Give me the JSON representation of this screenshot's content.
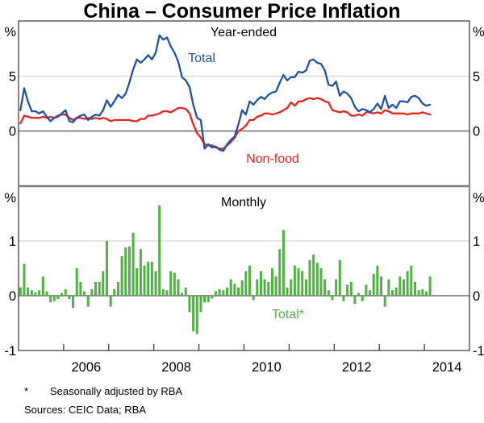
{
  "title": "China – Consumer Price Inflation",
  "footnote": {
    "marker": "*",
    "text": "Seasonally adjusted by RBA"
  },
  "sources": "Sources:  CEIC Data; RBA",
  "axis": {
    "unit_label": "%",
    "x_year_tick_years": [
      2006,
      2007,
      2008,
      2009,
      2010,
      2011,
      2012,
      2013,
      2014
    ],
    "x_year_labels": [
      "2006",
      "2008",
      "2010",
      "2012",
      "2014"
    ],
    "x_label_years": [
      2006,
      2008,
      2010,
      2012,
      2014
    ]
  },
  "chart_data": [
    {
      "type": "line",
      "panel": "top",
      "panel_title": "Year-ended",
      "ylabel": "%",
      "ylim": [
        -5,
        10
      ],
      "yticks": [
        0,
        5
      ],
      "grid": "horizontal",
      "x_start": "2005-01",
      "x_end": "2014-02",
      "frequency": "monthly",
      "xlim_years": [
        2005,
        2015
      ],
      "series": [
        {
          "name": "Total",
          "color": "#2253a3",
          "values": [
            1.9,
            3.9,
            2.7,
            1.8,
            1.8,
            1.6,
            1.8,
            1.3,
            0.9,
            1.2,
            1.3,
            1.6,
            1.9,
            0.9,
            0.8,
            1.2,
            1.4,
            1.5,
            1.0,
            1.3,
            1.5,
            1.4,
            1.9,
            2.8,
            2.2,
            2.7,
            3.3,
            3.0,
            3.4,
            4.4,
            5.6,
            6.5,
            6.2,
            6.5,
            6.9,
            6.5,
            7.1,
            8.7,
            8.3,
            8.5,
            7.7,
            7.1,
            6.3,
            4.9,
            4.6,
            4.0,
            2.4,
            1.2,
            1.0,
            -1.6,
            -1.2,
            -1.5,
            -1.4,
            -1.7,
            -1.8,
            -1.2,
            -0.8,
            -0.5,
            0.6,
            1.9,
            1.5,
            2.7,
            2.4,
            2.8,
            3.1,
            2.9,
            3.3,
            3.5,
            3.6,
            4.4,
            5.1,
            4.6,
            4.9,
            4.9,
            5.4,
            5.3,
            5.5,
            6.4,
            6.5,
            6.2,
            6.1,
            5.5,
            4.2,
            4.1,
            4.5,
            3.2,
            3.6,
            3.4,
            3.0,
            2.2,
            1.8,
            2.0,
            1.9,
            1.7,
            2.0,
            2.5,
            2.0,
            3.2,
            2.1,
            2.4,
            2.1,
            2.7,
            2.7,
            2.6,
            3.1,
            3.2,
            3.0,
            2.5,
            2.3,
            2.4
          ]
        },
        {
          "name": "Non-food",
          "color": "#e62520",
          "values": [
            0.7,
            1.4,
            1.3,
            1.2,
            1.2,
            1.2,
            1.3,
            1.2,
            1.3,
            1.2,
            1.4,
            1.5,
            1.5,
            1.2,
            1.0,
            1.2,
            1.2,
            1.1,
            1.2,
            1.1,
            1.2,
            1.1,
            1.2,
            1.1,
            0.9,
            1.0,
            1.0,
            1.0,
            1.0,
            1.0,
            0.9,
            0.9,
            1.1,
            1.1,
            1.4,
            1.4,
            1.5,
            1.6,
            1.8,
            1.8,
            1.7,
            1.9,
            2.1,
            2.1,
            2.0,
            1.6,
            0.6,
            -0.2,
            -0.6,
            -1.2,
            -1.3,
            -1.3,
            -1.5,
            -1.6,
            -1.6,
            -1.3,
            -1.0,
            -0.6,
            0.0,
            0.2,
            0.5,
            1.0,
            1.0,
            1.3,
            1.4,
            1.6,
            1.6,
            1.5,
            1.6,
            1.7,
            1.9,
            2.1,
            2.6,
            2.3,
            2.7,
            2.7,
            2.9,
            3.0,
            2.9,
            3.0,
            2.9,
            2.7,
            2.6,
            1.9,
            1.8,
            1.7,
            1.8,
            1.7,
            1.4,
            1.4,
            1.5,
            1.4,
            1.7,
            1.7,
            1.6,
            1.7,
            1.6,
            1.9,
            1.8,
            1.6,
            1.6,
            1.6,
            1.6,
            1.5,
            1.6,
            1.6,
            1.6,
            1.7,
            1.6,
            1.5
          ]
        }
      ]
    },
    {
      "type": "bar",
      "panel": "bottom",
      "panel_title": "Monthly",
      "ylabel": "%",
      "ylim": [
        -1,
        2
      ],
      "yticks": [
        -1,
        0,
        1
      ],
      "grid": "horizontal",
      "x_start": "2005-01",
      "x_end": "2014-02",
      "frequency": "monthly",
      "xlim_years": [
        2005,
        2015
      ],
      "series": [
        {
          "name": "Total*",
          "color": "#52b145",
          "values": [
            0.15,
            0.58,
            0.15,
            0.1,
            0.06,
            0.1,
            0.35,
            0.08,
            -0.12,
            -0.1,
            -0.06,
            0.05,
            0.12,
            -0.06,
            -0.22,
            0.5,
            0.25,
            0.08,
            -0.2,
            0.12,
            0.25,
            0.25,
            0.45,
            1.0,
            -0.2,
            0.12,
            0.25,
            0.72,
            0.88,
            0.9,
            1.15,
            0.5,
            0.85,
            0.55,
            0.62,
            0.62,
            0.45,
            1.65,
            0.12,
            0.1,
            0.45,
            0.42,
            0.3,
            0.05,
            0.15,
            -0.3,
            -0.65,
            -0.7,
            -0.3,
            -0.12,
            -0.12,
            -0.05,
            0.08,
            0.12,
            0.1,
            0.15,
            0.3,
            0.22,
            0.15,
            0.28,
            0.45,
            0.55,
            -0.08,
            0.3,
            0.45,
            0.3,
            0.25,
            0.5,
            0.35,
            0.85,
            1.2,
            0.15,
            0.3,
            0.55,
            0.5,
            0.45,
            0.3,
            0.65,
            0.75,
            0.6,
            0.5,
            0.3,
            0.1,
            -0.08,
            0.3,
            0.65,
            -0.1,
            0.2,
            0.25,
            -0.15,
            0.05,
            -0.1,
            0.2,
            0.1,
            0.4,
            0.55,
            0.35,
            -0.2,
            0.3,
            0.1,
            0.15,
            0.35,
            0.3,
            0.45,
            0.55,
            0.25,
            0.1,
            0.12,
            0.08,
            0.35
          ]
        }
      ]
    }
  ],
  "colors": {
    "total_line": "#2253a3",
    "nonfood_line": "#e62520",
    "monthly_bars": "#52b145",
    "gridline": "#cfcfcf",
    "zero_line": "#6e6e6e",
    "frame": "#333333",
    "divider": "#7f7f7f"
  }
}
